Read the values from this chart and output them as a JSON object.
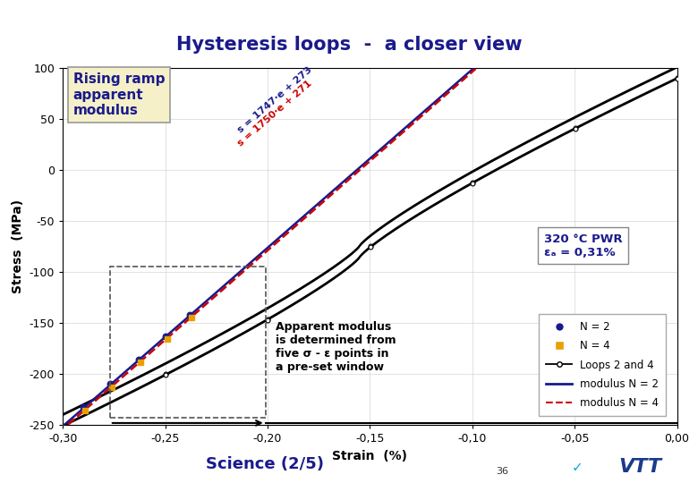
{
  "title": "Hysteresis loops  -  a closer view",
  "title_color": "#1a1a8c",
  "title_fontsize": 15,
  "xlabel": "Strain  (%)",
  "ylabel": "Stress  (MPa)",
  "xlim": [
    -0.3,
    0.0
  ],
  "ylim": [
    -250,
    100
  ],
  "xticks": [
    -0.3,
    -0.25,
    -0.2,
    -0.15,
    -0.1,
    -0.05,
    0.0
  ],
  "yticks": [
    -250,
    -200,
    -150,
    -100,
    -50,
    0,
    50,
    100
  ],
  "bg_color": "#ffffff",
  "plot_bg_color": "#ffffff",
  "header_color": "#1f3a7a",
  "footer_color": "#1f3a7a",
  "modulus_N2_color": "#1a1a8c",
  "modulus_N4_color": "#cc0000",
  "loop_color": "#000000",
  "scatter_N2_color": "#1a1a8c",
  "scatter_N4_color": "#e8a000",
  "annotation_box_color": "#f5f0c8",
  "annotation_border_color": "#999999",
  "info_box_color": "#ffffff",
  "info_border_color": "#888888",
  "rising_ramp_text": "Rising ramp\napparent\nmodulus",
  "rising_ramp_fontsize": 11,
  "info_text": "320 °C PWR\nεₐ = 0,31%",
  "science_text": "Science (2/5)",
  "science_fontsize": 13,
  "footer_label": "36",
  "eq1_text": "s = 1747·e + 273",
  "eq2_text": "s = 1750·e + 271",
  "eq1_color": "#1a1a8c",
  "eq2_color": "#cc0000",
  "apparent_modulus_text": "Apparent modulus\nis determined from\nfive σ - ε points in\na pre-set window",
  "legend_N2": "N = 2",
  "legend_N4": "N = 4",
  "legend_loops": "Loops 2 and 4",
  "legend_mod_N2": "modulus N = 2",
  "legend_mod_N4": "modulus N = 4"
}
